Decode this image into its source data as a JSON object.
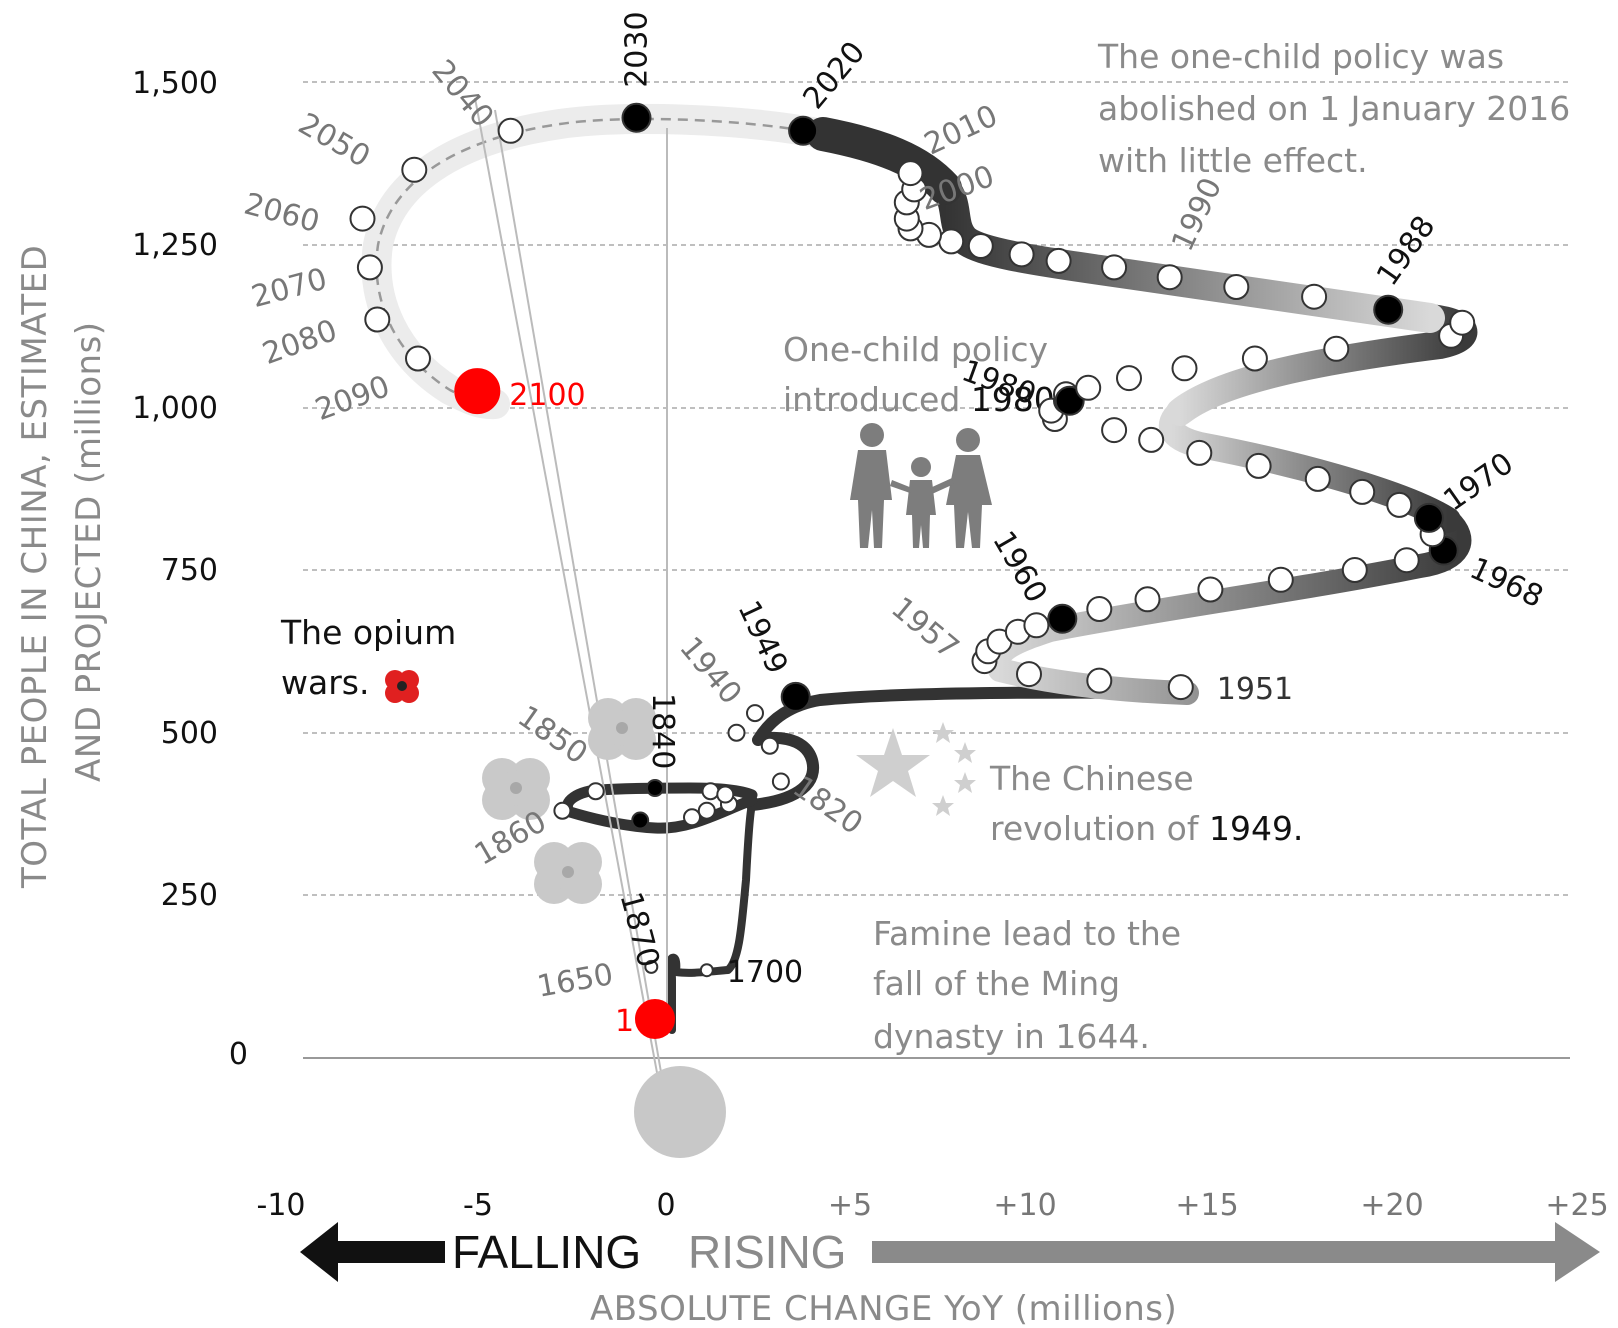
{
  "chart_data": {
    "type": "scatter",
    "title": "",
    "xlabel": "ABSOLUTE CHANGE YoY (millions)",
    "ylabel_line1": "TOTAL PEOPLE IN CHINA, ESTIMATED",
    "ylabel_line2": "AND PROJECTED (millions)",
    "xlim": [
      -10,
      25
    ],
    "ylim": [
      -100,
      1600
    ],
    "x_ticks": [
      {
        "value": -10,
        "label": "-10"
      },
      {
        "value": -5,
        "label": "-5"
      },
      {
        "value": 0,
        "label": "0"
      },
      {
        "value": 5,
        "label": "+5"
      },
      {
        "value": 10,
        "label": "+10"
      },
      {
        "value": 15,
        "label": "+15"
      },
      {
        "value": 20,
        "label": "+20"
      },
      {
        "value": 25,
        "label": "+25"
      }
    ],
    "y_ticks": [
      {
        "value": 0,
        "label": "0"
      },
      {
        "value": 250,
        "label": "250"
      },
      {
        "value": 500,
        "label": "500"
      },
      {
        "value": 750,
        "label": "750"
      },
      {
        "value": 1000,
        "label": "1,000"
      },
      {
        "value": 1250,
        "label": "1,250"
      },
      {
        "value": 1500,
        "label": "1,500"
      }
    ],
    "falling_label": "FALLING",
    "rising_label": "RISING",
    "series": [
      {
        "points": [
          {
            "x": 0.1,
            "y": 60,
            "label": "1",
            "style": "red"
          },
          {
            "x": 0.0,
            "y": 140,
            "label": "1650",
            "style": "open-small"
          },
          {
            "x": 1.5,
            "y": 135,
            "label": "1700",
            "style": "open-small"
          },
          {
            "x": 2.1,
            "y": 390
          },
          {
            "x": 3.5,
            "y": 425,
            "label": "1820"
          },
          {
            "x": 3.2,
            "y": 480
          },
          {
            "x": 2.3,
            "y": 500,
            "label": "1940"
          },
          {
            "x": 2.8,
            "y": 530
          },
          {
            "x": 3.9,
            "y": 555,
            "label": "1949",
            "style": "filled"
          },
          {
            "x": 14.3,
            "y": 570,
            "label": "1951"
          },
          {
            "x": 12.1,
            "y": 580
          },
          {
            "x": 10.2,
            "y": 590
          },
          {
            "x": 9.0,
            "y": 610,
            "label": "1957"
          },
          {
            "x": 9.1,
            "y": 625
          },
          {
            "x": 9.4,
            "y": 640
          },
          {
            "x": 9.9,
            "y": 655
          },
          {
            "x": 10.4,
            "y": 665
          },
          {
            "x": 11.1,
            "y": 675,
            "label": "1960",
            "style": "filled"
          },
          {
            "x": 12.1,
            "y": 690
          },
          {
            "x": 13.4,
            "y": 705
          },
          {
            "x": 15.1,
            "y": 720
          },
          {
            "x": 17.0,
            "y": 735
          },
          {
            "x": 19.0,
            "y": 750
          },
          {
            "x": 20.4,
            "y": 765
          },
          {
            "x": 21.4,
            "y": 780,
            "label": "1968",
            "style": "filled"
          },
          {
            "x": 21.1,
            "y": 805
          },
          {
            "x": 21.0,
            "y": 830,
            "label": "1970",
            "style": "filled"
          },
          {
            "x": 20.2,
            "y": 850
          },
          {
            "x": 19.2,
            "y": 870
          },
          {
            "x": 18.0,
            "y": 890
          },
          {
            "x": 16.4,
            "y": 910
          },
          {
            "x": 14.8,
            "y": 930
          },
          {
            "x": 13.5,
            "y": 950
          },
          {
            "x": 12.5,
            "y": 965
          },
          {
            "x": 10.9,
            "y": 982
          },
          {
            "x": 10.8,
            "y": 995
          },
          {
            "x": 11.2,
            "y": 1010
          },
          {
            "x": 11.2,
            "y": 1020
          },
          {
            "x": 11.3,
            "y": 1010,
            "label": "1980",
            "style": "filled"
          },
          {
            "x": 11.8,
            "y": 1030
          },
          {
            "x": 12.9,
            "y": 1045
          },
          {
            "x": 14.4,
            "y": 1060
          },
          {
            "x": 16.3,
            "y": 1075
          },
          {
            "x": 18.5,
            "y": 1090
          },
          {
            "x": 21.6,
            "y": 1110
          },
          {
            "x": 21.9,
            "y": 1130
          },
          {
            "x": 19.9,
            "y": 1150,
            "label": "1988",
            "style": "filled"
          },
          {
            "x": 17.9,
            "y": 1170
          },
          {
            "x": 15.8,
            "y": 1185
          },
          {
            "x": 14.0,
            "y": 1200,
            "label": "1990"
          },
          {
            "x": 12.5,
            "y": 1215
          },
          {
            "x": 11.0,
            "y": 1225
          },
          {
            "x": 10.0,
            "y": 1235
          },
          {
            "x": 8.9,
            "y": 1248
          },
          {
            "x": 8.1,
            "y": 1255
          },
          {
            "x": 7.5,
            "y": 1265
          },
          {
            "x": 7.0,
            "y": 1275,
            "label": "2000"
          },
          {
            "x": 6.9,
            "y": 1290
          },
          {
            "x": 6.9,
            "y": 1315
          },
          {
            "x": 7.1,
            "y": 1335
          },
          {
            "x": 7.0,
            "y": 1360,
            "label": "2010"
          },
          {
            "x": 4.1,
            "y": 1425,
            "label": "2020",
            "style": "filled"
          },
          {
            "x": -0.4,
            "y": 1445,
            "label": "2030",
            "style": "filled"
          },
          {
            "x": -3.8,
            "y": 1425,
            "label": "2040"
          },
          {
            "x": -6.4,
            "y": 1365,
            "label": "2050"
          },
          {
            "x": -7.8,
            "y": 1290,
            "label": "2060"
          },
          {
            "x": -7.6,
            "y": 1215,
            "label": "2070"
          },
          {
            "x": -7.4,
            "y": 1135,
            "label": "2080"
          },
          {
            "x": -6.3,
            "y": 1075,
            "label": "2090"
          },
          {
            "x": -4.7,
            "y": 1025,
            "label": "2100",
            "style": "red"
          }
        ]
      },
      {
        "points": [
          {
            "x": 2.1,
            "y": 390
          },
          {
            "x": 1.5,
            "y": 380
          },
          {
            "x": 1.1,
            "y": 370
          },
          {
            "x": -0.3,
            "y": 365,
            "label": "1870",
            "style": "filled"
          },
          {
            "x": -2.4,
            "y": 380,
            "label": "1860"
          },
          {
            "x": -1.5,
            "y": 410,
            "label": "1850"
          },
          {
            "x": 0.1,
            "y": 415,
            "label": "1840",
            "style": "filled"
          },
          {
            "x": 1.6,
            "y": 410
          },
          {
            "x": 2.0,
            "y": 405
          }
        ]
      }
    ],
    "annotations": {
      "one_child_abolished": [
        "The one-child policy was",
        "abolished on 1 January 2016",
        "with little effect."
      ],
      "one_child_intro_line1": "One-child policy",
      "one_child_intro_line2_gray": "introduced ",
      "one_child_intro_line2_black": "1980",
      "opium_line1": "The opium",
      "opium_line2": "wars.",
      "revolution_line1": "The Chinese",
      "revolution_line2_gray": "revolution of ",
      "revolution_line2_black": "1949.",
      "famine": [
        "Famine lead to the",
        "fall of the Ming",
        "dynasty in 1644."
      ]
    },
    "colors": {
      "highlight": "#ff0000",
      "track_dark": "#333333",
      "track_light": "#ececec",
      "annotation_gray": "#8a8a8a",
      "grid": "#aaaaaa"
    }
  }
}
